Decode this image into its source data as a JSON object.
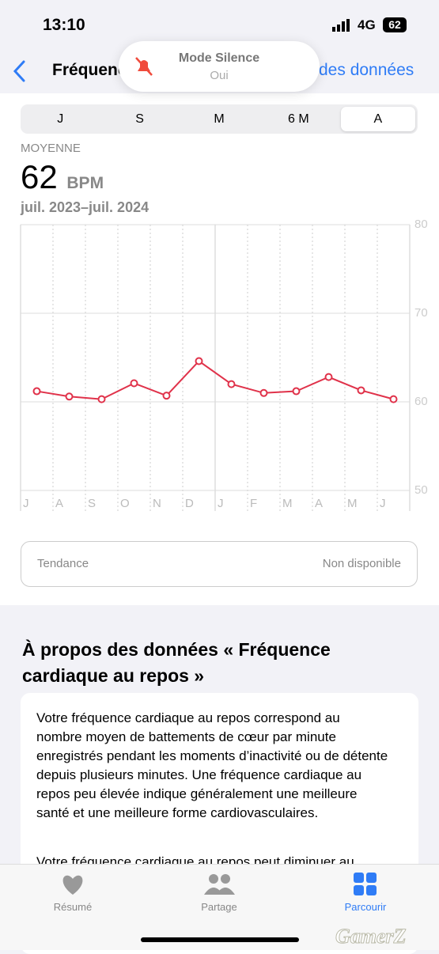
{
  "status": {
    "time": "13:10",
    "network": "4G",
    "battery": "62"
  },
  "nav": {
    "back_title": "Fréquence",
    "right": "des données"
  },
  "banner": {
    "title": "Mode Silence",
    "subtitle": "Oui"
  },
  "segments": [
    "J",
    "S",
    "M",
    "6 M",
    "A"
  ],
  "summary": {
    "label": "MOYENNE",
    "value": "62",
    "unit": "BPM",
    "range": "juil. 2023–juil. 2024"
  },
  "chart_data": {
    "type": "line",
    "categories": [
      "J",
      "A",
      "S",
      "O",
      "N",
      "D",
      "J",
      "F",
      "M",
      "A",
      "M",
      "J"
    ],
    "series": [
      {
        "color": "#e0324a",
        "values": [
          61.2,
          60.6,
          60.3,
          62.1,
          60.7,
          64.6,
          62.0,
          61.0,
          61.2,
          62.8,
          61.3,
          60.3
        ]
      }
    ],
    "ylim": [
      50,
      80
    ],
    "yticks": [
      50,
      60,
      70,
      80
    ],
    "grid": true
  },
  "trend": {
    "label": "Tendance",
    "value": "Non disponible"
  },
  "about": {
    "title": "À propos des données « Fréquence cardiaque au repos »",
    "paragraphs": [
      "Votre fréquence cardiaque au repos correspond au nombre moyen de battements de cœur par minute enregistrés pendant les moments d’inactivité ou de détente depuis plusieurs minutes. Une fréquence cardiaque au repos peu élevée indique généralement une meilleure santé et une meilleure forme cardiovasculaires.",
      "Votre fréquence cardiaque au repos peut diminuer au"
    ]
  },
  "tabs": [
    "Résumé",
    "Partage",
    "Parcourir"
  ],
  "watermark": "GamerZ"
}
